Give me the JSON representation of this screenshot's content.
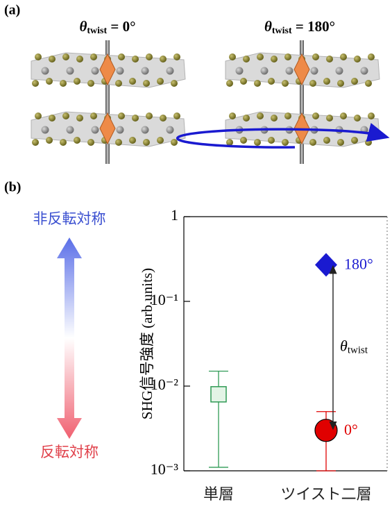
{
  "panel_labels": [
    "(a)",
    "(b)"
  ],
  "panel_a": {
    "titles": [
      {
        "symbol": "θ",
        "subscript": "twist",
        "text": " = 0°"
      },
      {
        "symbol": "θ",
        "subscript": "twist",
        "text": " = 180°"
      }
    ]
  },
  "symmetry_labels": {
    "top": "非反転対称",
    "bottom": "反転対称"
  },
  "chart_data": {
    "type": "scatter",
    "y_label": "SHG信号強度 (arb.units)",
    "categories": [
      "単層",
      "ツイスト二層"
    ],
    "log_y": true,
    "grid": false,
    "ylim": [
      0.001,
      1
    ],
    "yticks": [
      1,
      {
        "value": 0.1,
        "label": "10⁻¹"
      },
      {
        "value": 0.01,
        "label": "10⁻²"
      },
      {
        "value": 0.001,
        "label": "10⁻³"
      }
    ],
    "series": [
      {
        "color": "#2f9a55",
        "fill": "#e3f4e6",
        "marker": "square",
        "values": [
          0.008,
          null
        ],
        "upper": [
          0.015,
          null
        ],
        "lower": [
          0.0011,
          null
        ]
      },
      {
        "color": "#e00000",
        "fill": "#e00000",
        "marker": "circle",
        "values": [
          null,
          0.003
        ],
        "upper": [
          null,
          0.005
        ],
        "lower": [
          null,
          0.001
        ]
      },
      {
        "color": "#1a1ad0",
        "fill": "#1a1ad0",
        "marker": "diamond",
        "values": [
          null,
          0.27
        ]
      }
    ],
    "annotations": {
      "high": {
        "text": "180°",
        "color": "#1a1ad0"
      },
      "low": {
        "text": "0°",
        "color": "#e00000"
      },
      "angle": {
        "symbol": "θ",
        "subscript": "twist"
      }
    }
  }
}
